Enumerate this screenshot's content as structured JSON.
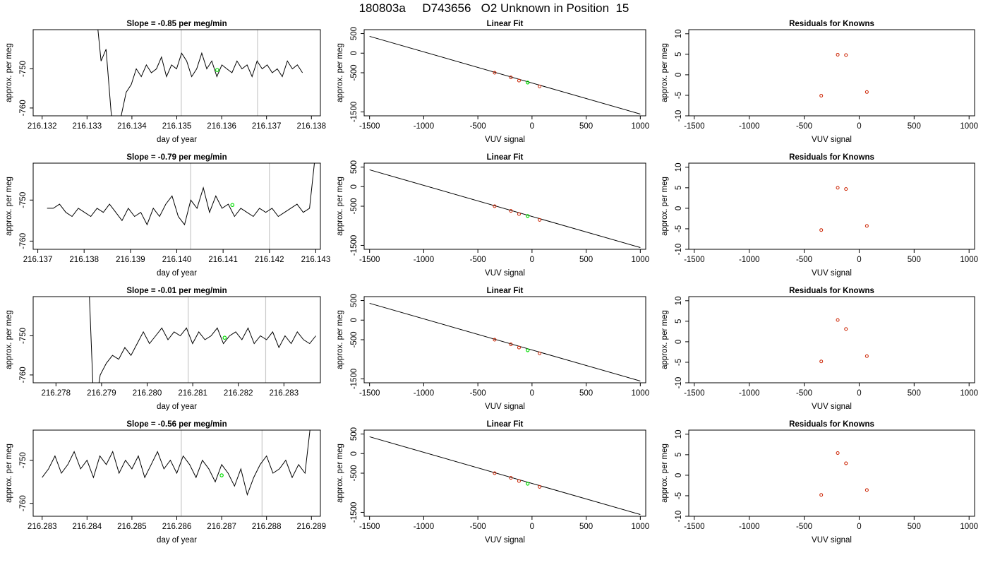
{
  "title": {
    "run": "180803a",
    "tank": "D743656",
    "desc": "O2 Unknown in Position  15"
  },
  "chart_data": [
    {
      "type": "line",
      "panel": "timeseries",
      "title_prefix": "Slope =  ",
      "slope": "-0.85",
      "title_suffix": "  per meg/min",
      "xlabel": "day of year",
      "ylabel": "approx. per meg",
      "xlim": [
        216.1318,
        216.1382
      ],
      "ylim": [
        -762,
        -740
      ],
      "xticks": [
        "216.132",
        "216.133",
        "216.134",
        "216.135",
        "216.136",
        "216.137",
        "216.138"
      ],
      "yticks": [
        "-760",
        "-750"
      ],
      "x_start": 216.1332,
      "x_end": 216.1378,
      "trace": [
        -735,
        -748,
        -745,
        -761,
        -770,
        -762,
        -756,
        -754,
        -750,
        -752,
        -749,
        -751,
        -750,
        -747,
        -752,
        -749,
        -750,
        -746,
        -748,
        -752,
        -750,
        -746,
        -750,
        -748,
        -752,
        -749,
        -750,
        -751,
        -748,
        -750,
        -749,
        -752,
        -748,
        -750,
        -749,
        -751,
        -750,
        -752,
        -748,
        -750,
        -749,
        -751
      ],
      "vlines": [
        216.1351,
        216.1368
      ],
      "marker": {
        "x": 216.1359,
        "y": -750.3
      }
    },
    {
      "type": "line",
      "panel": "linear-fit",
      "title": "Linear Fit",
      "xlabel": "VUV signal",
      "ylabel": "approx. per meg",
      "xlim": [
        -1550,
        1050
      ],
      "ylim": [
        -1600,
        600
      ],
      "xticks": [
        -1500,
        -1000,
        -500,
        0,
        500,
        1000
      ],
      "yticks": [
        500,
        0,
        -500,
        -1500
      ],
      "yticks_text": [
        "500",
        "0",
        "-500",
        "-1500"
      ],
      "fit_line": {
        "x": [
          -1500,
          1000
        ],
        "y": [
          430,
          -1555
        ]
      },
      "knowns": {
        "x": [
          -345,
          -195,
          -120,
          70
        ],
        "y": [
          -500,
          -620,
          -700,
          -850
        ]
      },
      "unknown": {
        "x": -40,
        "y": -750
      }
    },
    {
      "type": "scatter",
      "panel": "residuals",
      "title": "Residuals for Knowns",
      "xlabel": "VUV signal",
      "ylabel": "approx. per meg",
      "xlim": [
        -1550,
        1050
      ],
      "ylim": [
        -10,
        11
      ],
      "xticks": [
        -1500,
        -1000,
        -500,
        0,
        500,
        1000
      ],
      "yticks": [
        10,
        5,
        0,
        -5,
        -10
      ],
      "x": [
        -345,
        -195,
        -120,
        70
      ],
      "y": [
        -5.1,
        4.9,
        4.8,
        -4.2
      ]
    },
    {
      "type": "line",
      "panel": "timeseries",
      "title_prefix": "Slope =  ",
      "slope": "-0.79",
      "title_suffix": "  per meg/min",
      "xlabel": "day of year",
      "ylabel": "approx. per meg",
      "xlim": [
        216.1369,
        216.1431
      ],
      "ylim": [
        -762,
        -741
      ],
      "xticks": [
        "216.137",
        "216.138",
        "216.139",
        "216.140",
        "216.141",
        "216.142",
        "216.143"
      ],
      "yticks": [
        "-760",
        "-750"
      ],
      "x_start": 216.1372,
      "x_end": 216.143,
      "trace": [
        -752,
        -752,
        -751,
        -753,
        -754,
        -752,
        -753,
        -754,
        -752,
        -753,
        -751,
        -753,
        -755,
        -752,
        -754,
        -753,
        -756,
        -752,
        -754,
        -751,
        -749,
        -754,
        -756,
        -750,
        -752,
        -747,
        -753,
        -749,
        -752,
        -751,
        -754,
        -752,
        -753,
        -754,
        -752,
        -753,
        -752,
        -754,
        -753,
        -752,
        -751,
        -753,
        -752,
        -738
      ],
      "vlines": [
        216.1403,
        216.142
      ],
      "marker": {
        "x": 216.1412,
        "y": -751.2
      }
    },
    {
      "type": "line",
      "panel": "linear-fit",
      "title": "Linear Fit",
      "xlabel": "VUV signal",
      "ylabel": "approx. per meg",
      "xlim": [
        -1550,
        1050
      ],
      "ylim": [
        -1600,
        600
      ],
      "xticks": [
        -1500,
        -1000,
        -500,
        0,
        500,
        1000
      ],
      "yticks": [
        500,
        0,
        -500,
        -1500
      ],
      "yticks_text": [
        "500",
        "0",
        "-500",
        "-1500"
      ],
      "fit_line": {
        "x": [
          -1500,
          1000
        ],
        "y": [
          430,
          -1555
        ]
      },
      "knowns": {
        "x": [
          -345,
          -195,
          -120,
          70
        ],
        "y": [
          -500,
          -620,
          -700,
          -850
        ]
      },
      "unknown": {
        "x": -40,
        "y": -750
      }
    },
    {
      "type": "scatter",
      "panel": "residuals",
      "title": "Residuals for Knowns",
      "xlabel": "VUV signal",
      "ylabel": "approx. per meg",
      "xlim": [
        -1550,
        1050
      ],
      "ylim": [
        -10,
        11
      ],
      "xticks": [
        -1500,
        -1000,
        -500,
        0,
        500,
        1000
      ],
      "yticks": [
        10,
        5,
        0,
        -5,
        -10
      ],
      "x": [
        -345,
        -195,
        -120,
        70
      ],
      "y": [
        -5.3,
        5.0,
        4.7,
        -4.3
      ]
    },
    {
      "type": "line",
      "panel": "timeseries",
      "title_prefix": "Slope =  ",
      "slope": "-0.01",
      "title_suffix": "  per meg/min",
      "xlabel": "day of year",
      "ylabel": "approx. per meg",
      "xlim": [
        216.2775,
        216.2838
      ],
      "ylim": [
        -762,
        -740
      ],
      "xticks": [
        "216.278",
        "216.279",
        "216.280",
        "216.281",
        "216.282",
        "216.283"
      ],
      "yticks": [
        "-760",
        "-750"
      ],
      "x_start": 216.2787,
      "x_end": 216.2837,
      "trace": [
        -730,
        -770,
        -760,
        -757,
        -755,
        -756,
        -753,
        -755,
        -752,
        -749,
        -752,
        -750,
        -748,
        -751,
        -749,
        -750,
        -748,
        -752,
        -749,
        -751,
        -750,
        -748,
        -752,
        -750,
        -749,
        -751,
        -748,
        -752,
        -750,
        -751,
        -749,
        -753,
        -750,
        -752,
        -749,
        -751,
        -752,
        -750
      ],
      "vlines": [
        216.2809,
        216.2826
      ],
      "marker": {
        "x": 216.2817,
        "y": -750.5
      }
    },
    {
      "type": "line",
      "panel": "linear-fit",
      "title": "Linear Fit",
      "xlabel": "VUV signal",
      "ylabel": "approx. per meg",
      "xlim": [
        -1550,
        1050
      ],
      "ylim": [
        -1600,
        600
      ],
      "xticks": [
        -1500,
        -1000,
        -500,
        0,
        500,
        1000
      ],
      "yticks": [
        500,
        0,
        -500,
        -1500
      ],
      "yticks_text": [
        "500",
        "0",
        "-500",
        "-1500"
      ],
      "fit_line": {
        "x": [
          -1500,
          1000
        ],
        "y": [
          430,
          -1555
        ]
      },
      "knowns": {
        "x": [
          -345,
          -195,
          -120,
          70
        ],
        "y": [
          -500,
          -620,
          -700,
          -850
        ]
      },
      "unknown": {
        "x": -40,
        "y": -770
      }
    },
    {
      "type": "scatter",
      "panel": "residuals",
      "title": "Residuals for Knowns",
      "xlabel": "VUV signal",
      "ylabel": "approx. per meg",
      "xlim": [
        -1550,
        1050
      ],
      "ylim": [
        -10,
        11
      ],
      "xticks": [
        -1500,
        -1000,
        -500,
        0,
        500,
        1000
      ],
      "yticks": [
        10,
        5,
        0,
        -5,
        -10
      ],
      "x": [
        -345,
        -195,
        -120,
        70
      ],
      "y": [
        -4.8,
        5.3,
        3.1,
        -3.5
      ]
    },
    {
      "type": "line",
      "panel": "timeseries",
      "title_prefix": "Slope =  ",
      "slope": "-0.56",
      "title_suffix": "  per meg/min",
      "xlabel": "day of year",
      "ylabel": "approx. per meg",
      "xlim": [
        216.2828,
        216.2892
      ],
      "ylim": [
        -763,
        -743
      ],
      "xticks": [
        "216.283",
        "216.284",
        "216.285",
        "216.286",
        "216.287",
        "216.288",
        "216.289"
      ],
      "yticks": [
        "-760",
        "-750"
      ],
      "x_start": 216.283,
      "x_end": 216.289,
      "trace": [
        -754,
        -752,
        -749,
        -753,
        -751,
        -748,
        -752,
        -750,
        -754,
        -749,
        -751,
        -748,
        -753,
        -750,
        -752,
        -749,
        -754,
        -751,
        -748,
        -752,
        -750,
        -753,
        -749,
        -751,
        -754,
        -750,
        -752,
        -755,
        -751,
        -753,
        -756,
        -752,
        -758,
        -754,
        -751,
        -749,
        -753,
        -752,
        -750,
        -754,
        -751,
        -753,
        -740
      ],
      "vlines": [
        216.2861,
        216.2879
      ],
      "marker": {
        "x": 216.287,
        "y": -753.5
      }
    },
    {
      "type": "line",
      "panel": "linear-fit",
      "title": "Linear Fit",
      "xlabel": "VUV signal",
      "ylabel": "approx. per meg",
      "xlim": [
        -1550,
        1050
      ],
      "ylim": [
        -1600,
        600
      ],
      "xticks": [
        -1500,
        -1000,
        -500,
        0,
        500,
        1000
      ],
      "yticks": [
        500,
        0,
        -500,
        -1500
      ],
      "yticks_text": [
        "500",
        "0",
        "-500",
        "-1500"
      ],
      "fit_line": {
        "x": [
          -1500,
          1000
        ],
        "y": [
          430,
          -1555
        ]
      },
      "knowns": {
        "x": [
          -345,
          -195,
          -120,
          70
        ],
        "y": [
          -500,
          -620,
          -700,
          -850
        ]
      },
      "unknown": {
        "x": -40,
        "y": -770
      }
    },
    {
      "type": "scatter",
      "panel": "residuals",
      "title": "Residuals for Knowns",
      "xlabel": "VUV signal",
      "ylabel": "approx. per meg",
      "xlim": [
        -1550,
        1050
      ],
      "ylim": [
        -10,
        11
      ],
      "xticks": [
        -1500,
        -1000,
        -500,
        0,
        500,
        1000
      ],
      "yticks": [
        10,
        5,
        0,
        -5,
        -10
      ],
      "x": [
        -345,
        -195,
        -120,
        70
      ],
      "y": [
        -4.8,
        5.4,
        2.9,
        -3.6
      ]
    }
  ],
  "colors": {
    "line": "#000000",
    "vline": "#c8c8c8",
    "unknown": "#00dd00",
    "known": "#cc2200"
  }
}
